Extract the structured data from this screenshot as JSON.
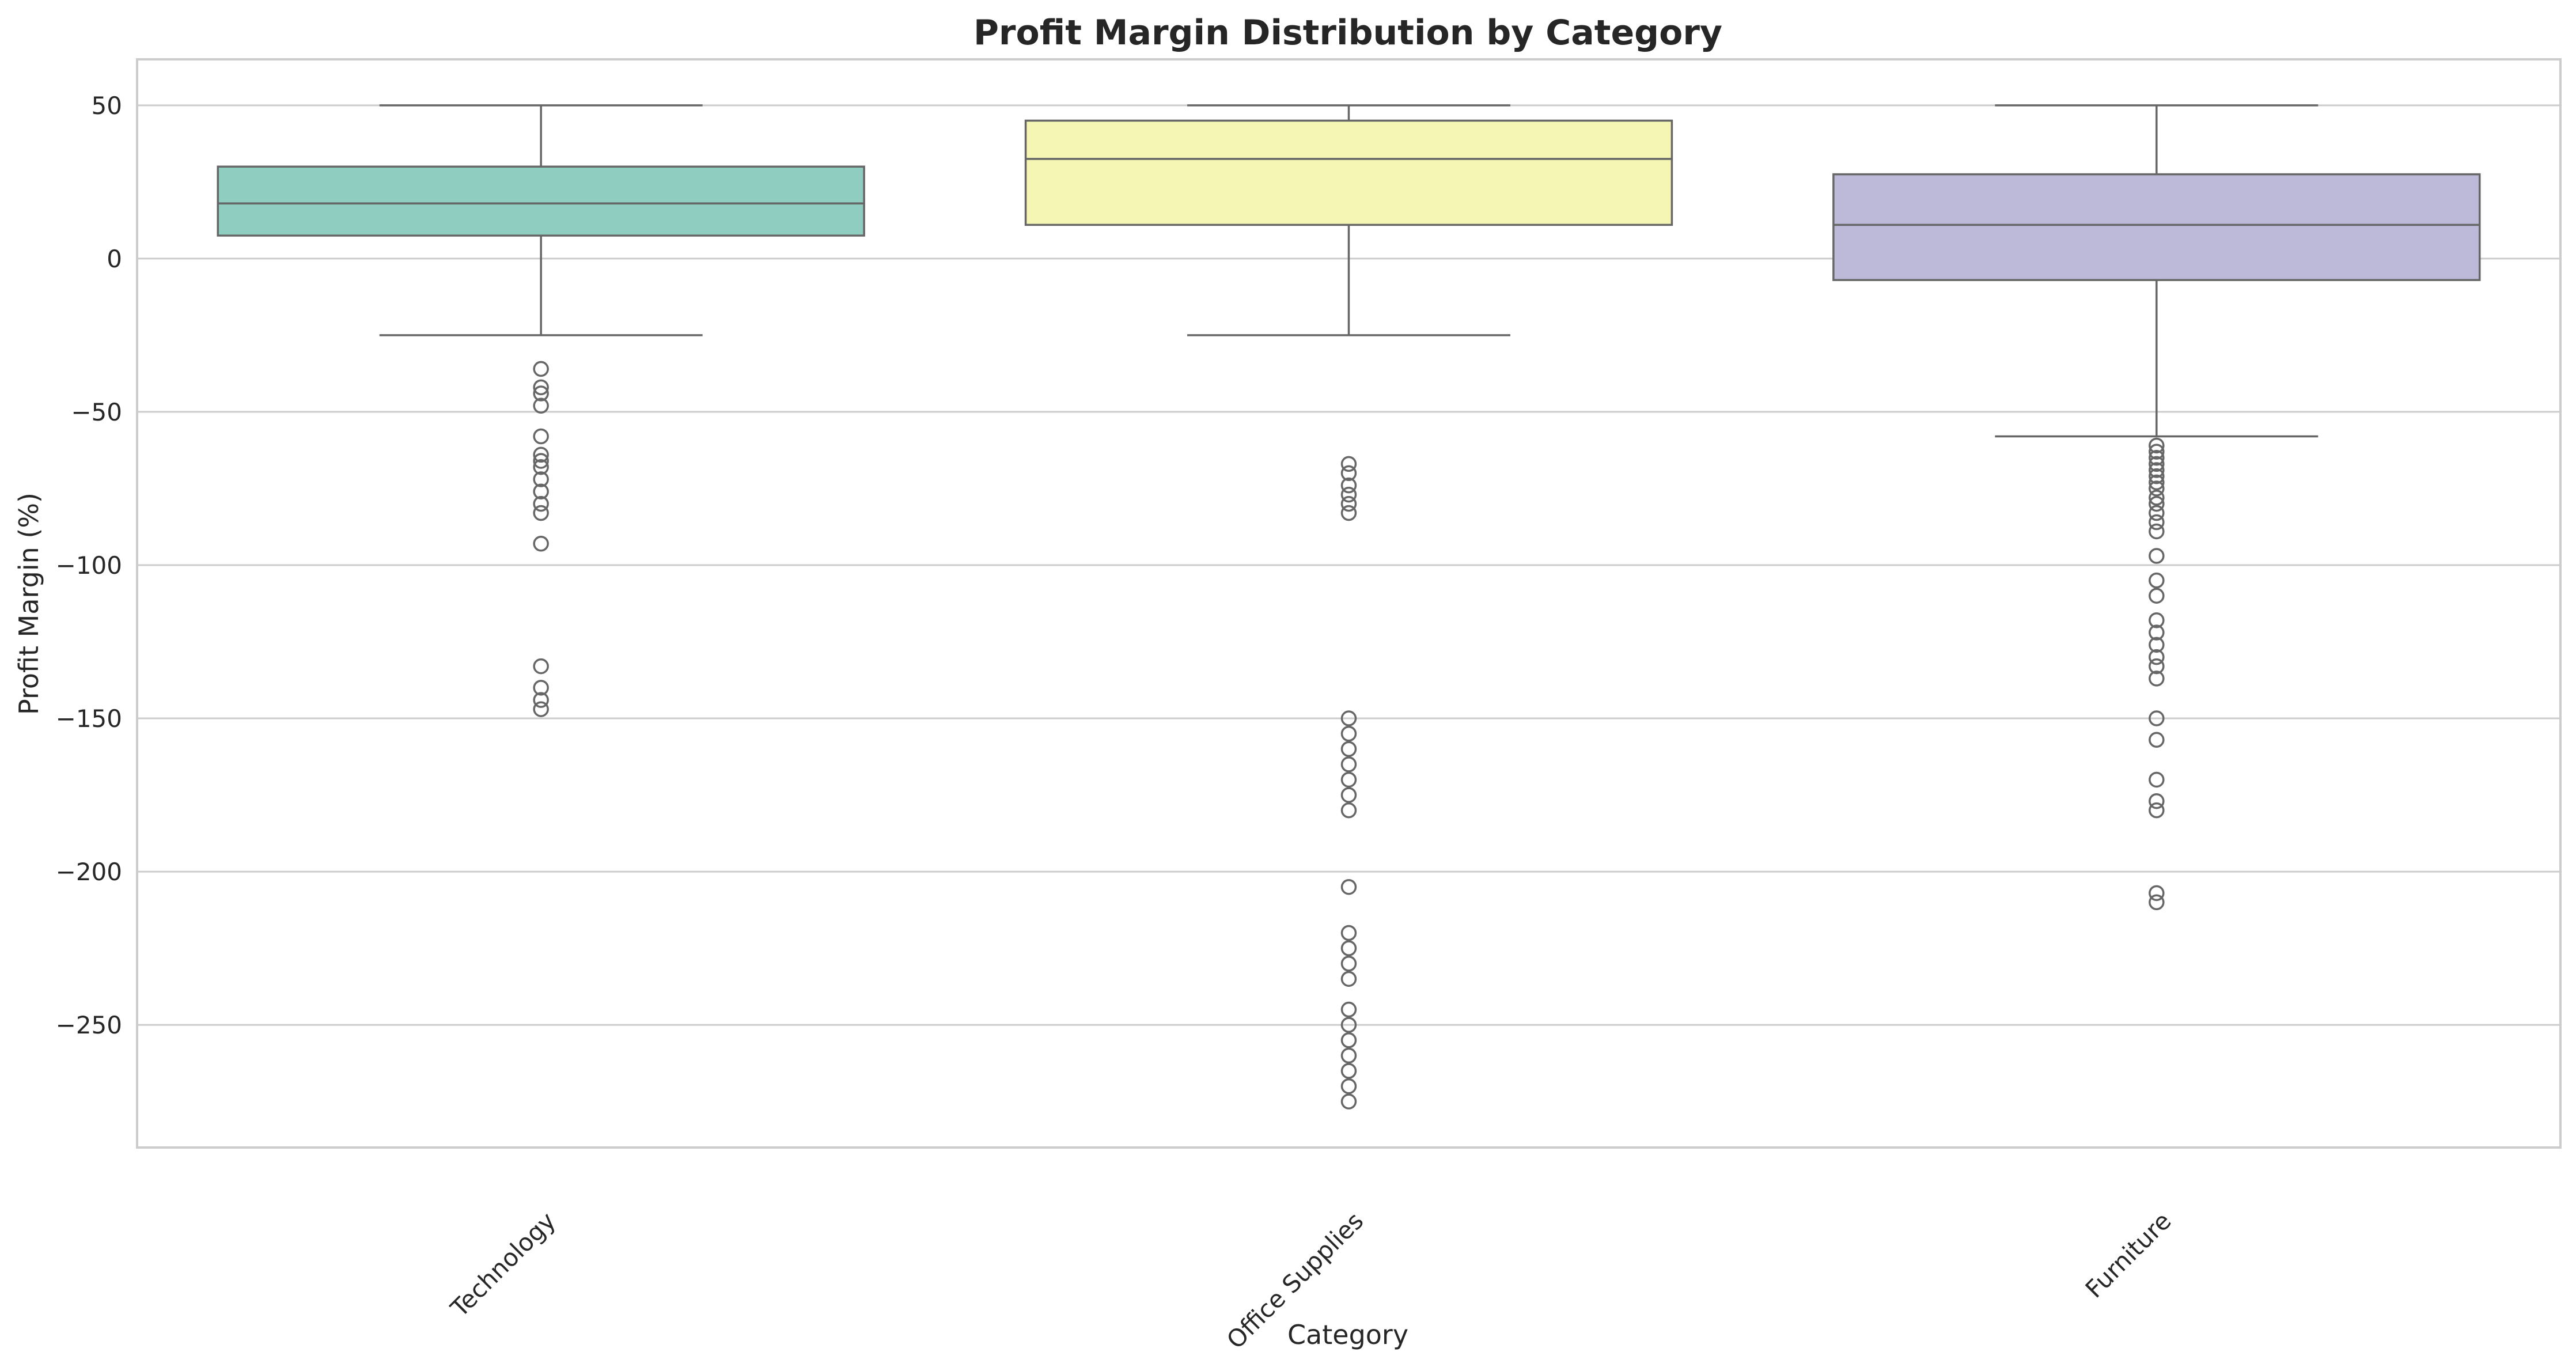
{
  "chart_data": {
    "type": "box",
    "title": "Profit Margin Distribution by Category",
    "xlabel": "Category",
    "ylabel": "Profit Margin (%)",
    "ylim": [
      -290,
      65
    ],
    "yticks": [
      -250,
      -200,
      -150,
      -100,
      -50,
      0,
      50
    ],
    "ytick_labels": [
      "−250",
      "−200",
      "−150",
      "−100",
      "−50",
      "0",
      "50"
    ],
    "grid": true,
    "categories": [
      "Technology",
      "Office Supplies",
      "Furniture"
    ],
    "colors": [
      "#8ecdbf",
      "#f6f6b4",
      "#bdb9d8"
    ],
    "boxes": [
      {
        "category": "Technology",
        "whisker_low": -25,
        "q1": 7.5,
        "median": 18,
        "q3": 30,
        "whisker_high": 50,
        "fliers": [
          -36,
          -42,
          -44,
          -48,
          -58,
          -64,
          -66,
          -68,
          -72,
          -76,
          -80,
          -83,
          -93,
          -133,
          -140,
          -144,
          -147
        ]
      },
      {
        "category": "Office Supplies",
        "whisker_low": -25,
        "q1": 11,
        "median": 32.5,
        "q3": 45,
        "whisker_high": 50,
        "fliers": [
          -67,
          -70,
          -74,
          -77,
          -80,
          -83,
          -150,
          -155,
          -160,
          -165,
          -170,
          -175,
          -180,
          -205,
          -220,
          -225,
          -230,
          -235,
          -245,
          -250,
          -255,
          -260,
          -265,
          -270,
          -275
        ]
      },
      {
        "category": "Furniture",
        "whisker_low": -58,
        "q1": -7,
        "median": 11,
        "q3": 27.5,
        "whisker_high": 50,
        "fliers": [
          -61,
          -63,
          -65,
          -67,
          -69,
          -71,
          -73,
          -75,
          -78,
          -80,
          -83,
          -86,
          -89,
          -97,
          -105,
          -110,
          -118,
          -122,
          -126,
          -130,
          -133,
          -137,
          -150,
          -157,
          -170,
          -177,
          -180,
          -207,
          -210
        ]
      }
    ]
  }
}
